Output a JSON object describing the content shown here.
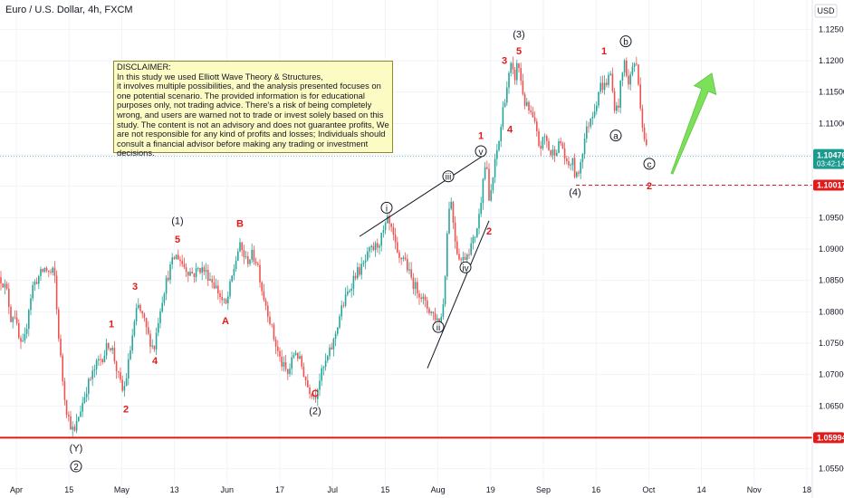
{
  "header": {
    "title": "Euro / U.S. Dollar, 4h, FXCM",
    "currency": "USD"
  },
  "disclaimer": {
    "heading": "DISCLAIMER:",
    "line1": "In this study we used Elliott Wave Theory & Structures,",
    "body": "it involves multiple possibilities, and the analysis presented focuses on one potential scenario. The provided information is for educational purposes only, not trading advice. There's a risk of being completely wrong, and users are warned not to trade or invest solely based on this study. The content is not an advisory and does not guarantee profits, We are not responsible for any kind of profits and losses; Individuals should consult a financial advisor before making any trading or investment decisions."
  },
  "chart_data": {
    "type": "candlestick",
    "symbol": "Euro / U.S. Dollar, 4h, FXCM",
    "ylim": [
      1.0525,
      1.1275
    ],
    "y_ticks": [
      "1.05500",
      "1.06000",
      "1.06500",
      "1.07000",
      "1.07500",
      "1.08000",
      "1.08500",
      "1.09000",
      "1.09500",
      "1.10000",
      "1.10500",
      "1.11000",
      "1.11500",
      "1.12000",
      "1.12500"
    ],
    "x_ticks": [
      "Apr",
      "15",
      "May",
      "13",
      "Jun",
      "17",
      "Jul",
      "15",
      "Aug",
      "19",
      "Sep",
      "16",
      "Oct",
      "14",
      "Nov",
      "18"
    ],
    "current_price": {
      "value": 1.10476,
      "label": "1.10476",
      "countdown": "03:42:14"
    },
    "levels": [
      {
        "value": 1.10017,
        "label": "1.10017",
        "style": "dashed",
        "color": "#e01b1b"
      },
      {
        "value": 1.05994,
        "label": "1.05994",
        "style": "solid",
        "color": "#e01b1b"
      }
    ],
    "close_path": [
      [
        0,
        1.0855
      ],
      [
        4,
        1.0845
      ],
      [
        8,
        1.083
      ],
      [
        12,
        1.079
      ],
      [
        16,
        1.08
      ],
      [
        20,
        1.076
      ],
      [
        24,
        1.074
      ],
      [
        28,
        1.076
      ],
      [
        32,
        1.081
      ],
      [
        36,
        1.084
      ],
      [
        40,
        1.085
      ],
      [
        45,
        1.086
      ],
      [
        50,
        1.087
      ],
      [
        55,
        1.086
      ],
      [
        60,
        1.0865
      ],
      [
        62,
        1.0815
      ],
      [
        66,
        1.074
      ],
      [
        70,
        1.068
      ],
      [
        74,
        1.064
      ],
      [
        78,
        1.062
      ],
      [
        82,
        1.0605
      ],
      [
        86,
        1.063
      ],
      [
        90,
        1.065
      ],
      [
        96,
        1.068
      ],
      [
        102,
        1.07
      ],
      [
        108,
        1.072
      ],
      [
        114,
        1.073
      ],
      [
        120,
        1.075
      ],
      [
        124,
        1.074
      ],
      [
        130,
        1.07
      ],
      [
        136,
        1.067
      ],
      [
        140,
        1.07
      ],
      [
        146,
        1.076
      ],
      [
        152,
        1.081
      ],
      [
        158,
        1.079
      ],
      [
        164,
        1.076
      ],
      [
        170,
        1.074
      ],
      [
        176,
        1.08
      ],
      [
        182,
        1.084
      ],
      [
        188,
        1.087
      ],
      [
        192,
        1.0885
      ],
      [
        196,
        1.089
      ],
      [
        202,
        1.0875
      ],
      [
        208,
        1.0865
      ],
      [
        214,
        1.086
      ],
      [
        220,
        1.087
      ],
      [
        226,
        1.0865
      ],
      [
        234,
        1.085
      ],
      [
        240,
        1.0835
      ],
      [
        246,
        1.0815
      ],
      [
        250,
        1.081
      ],
      [
        254,
        1.084
      ],
      [
        260,
        1.088
      ],
      [
        264,
        1.0905
      ],
      [
        268,
        1.0895
      ],
      [
        272,
        1.088
      ],
      [
        278,
        1.089
      ],
      [
        284,
        1.088
      ],
      [
        290,
        1.083
      ],
      [
        296,
        1.08
      ],
      [
        302,
        1.076
      ],
      [
        310,
        1.072
      ],
      [
        318,
        1.07
      ],
      [
        326,
        1.074
      ],
      [
        334,
        1.071
      ],
      [
        340,
        1.068
      ],
      [
        348,
        1.0665
      ],
      [
        352,
        1.069
      ],
      [
        360,
        1.072
      ],
      [
        368,
        1.075
      ],
      [
        376,
        1.08
      ],
      [
        384,
        1.083
      ],
      [
        392,
        1.086
      ],
      [
        400,
        1.087
      ],
      [
        408,
        1.0895
      ],
      [
        416,
        1.0905
      ],
      [
        422,
        1.092
      ],
      [
        428,
        1.0945
      ],
      [
        434,
        1.092
      ],
      [
        440,
        1.088
      ],
      [
        446,
        1.089
      ],
      [
        452,
        1.086
      ],
      [
        458,
        1.084
      ],
      [
        464,
        1.083
      ],
      [
        470,
        1.081
      ],
      [
        476,
        1.08
      ],
      [
        482,
        1.079
      ],
      [
        486,
        1.078
      ],
      [
        490,
        1.082
      ],
      [
        494,
        1.093
      ],
      [
        497,
        1.099
      ],
      [
        500,
        1.095
      ],
      [
        504,
        1.09
      ],
      [
        510,
        1.088
      ],
      [
        516,
        1.0895
      ],
      [
        522,
        1.091
      ],
      [
        526,
        1.093
      ],
      [
        530,
        1.096
      ],
      [
        534,
        1.103
      ],
      [
        538,
        1.103
      ],
      [
        540,
        1.097
      ],
      [
        544,
        1.101
      ],
      [
        548,
        1.105
      ],
      [
        552,
        1.108
      ],
      [
        556,
        1.113
      ],
      [
        560,
        1.116
      ],
      [
        564,
        1.119
      ],
      [
        568,
        1.117
      ],
      [
        572,
        1.12
      ],
      [
        576,
        1.116
      ],
      [
        580,
        1.113
      ],
      [
        584,
        1.112
      ],
      [
        590,
        1.11
      ],
      [
        596,
        1.106
      ],
      [
        602,
        1.108
      ],
      [
        608,
        1.105
      ],
      [
        614,
        1.106
      ],
      [
        620,
        1.107
      ],
      [
        626,
        1.103
      ],
      [
        632,
        1.104
      ],
      [
        636,
        1.101
      ],
      [
        640,
        1.103
      ],
      [
        646,
        1.108
      ],
      [
        652,
        1.111
      ],
      [
        658,
        1.113
      ],
      [
        662,
        1.116
      ],
      [
        668,
        1.116
      ],
      [
        674,
        1.118
      ],
      [
        678,
        1.113
      ],
      [
        682,
        1.112
      ],
      [
        686,
        1.117
      ],
      [
        690,
        1.12
      ],
      [
        694,
        1.116
      ],
      [
        698,
        1.119
      ],
      [
        702,
        1.12
      ],
      [
        706,
        1.115
      ],
      [
        710,
        1.109
      ],
      [
        714,
        1.106
      ],
      [
        716,
        1.105
      ]
    ],
    "wave_labels": [
      {
        "text": "(Y)",
        "x": 84,
        "y": 1.0578,
        "color": "black",
        "circled": false
      },
      {
        "text": "2",
        "x": 84,
        "y": 1.0548,
        "color": "black",
        "circled": true
      },
      {
        "text": "1",
        "x": 123,
        "y": 1.0775,
        "color": "red",
        "circled": false
      },
      {
        "text": "2",
        "x": 139,
        "y": 1.064,
        "color": "red",
        "circled": false
      },
      {
        "text": "3",
        "x": 149,
        "y": 1.0835,
        "color": "red",
        "circled": false
      },
      {
        "text": "4",
        "x": 171,
        "y": 1.0717,
        "color": "red",
        "circled": false
      },
      {
        "text": "5",
        "x": 196,
        "y": 1.091,
        "color": "red",
        "circled": false
      },
      {
        "text": "(1)",
        "x": 196,
        "y": 1.094,
        "color": "black",
        "circled": false
      },
      {
        "text": "A",
        "x": 249,
        "y": 1.078,
        "color": "red",
        "circled": false
      },
      {
        "text": "B",
        "x": 265,
        "y": 1.0935,
        "color": "red",
        "circled": false
      },
      {
        "text": "C",
        "x": 348,
        "y": 1.0665,
        "color": "red",
        "circled": false
      },
      {
        "text": "(2)",
        "x": 348,
        "y": 1.0637,
        "color": "black",
        "circled": false
      },
      {
        "text": "i",
        "x": 427,
        "y": 1.096,
        "color": "black",
        "circled": true
      },
      {
        "text": "ii",
        "x": 484,
        "y": 1.077,
        "color": "black",
        "circled": true
      },
      {
        "text": "iii",
        "x": 495,
        "y": 1.101,
        "color": "black",
        "circled": true
      },
      {
        "text": "iv",
        "x": 514,
        "y": 1.0865,
        "color": "black",
        "circled": true
      },
      {
        "text": "v",
        "x": 531,
        "y": 1.105,
        "color": "black",
        "circled": true
      },
      {
        "text": "1",
        "x": 531,
        "y": 1.1075,
        "color": "red",
        "circled": false
      },
      {
        "text": "2",
        "x": 540,
        "y": 1.0923,
        "color": "red",
        "circled": false
      },
      {
        "text": "3",
        "x": 557,
        "y": 1.1195,
        "color": "red",
        "circled": false
      },
      {
        "text": "4",
        "x": 563,
        "y": 1.1085,
        "color": "red",
        "circled": false
      },
      {
        "text": "5",
        "x": 573,
        "y": 1.121,
        "color": "red",
        "circled": false
      },
      {
        "text": "(3)",
        "x": 573,
        "y": 1.1237,
        "color": "black",
        "circled": false
      },
      {
        "text": "(4)",
        "x": 635,
        "y": 1.0985,
        "color": "black",
        "circled": false
      },
      {
        "text": "1",
        "x": 667,
        "y": 1.121,
        "color": "red",
        "circled": false
      },
      {
        "text": "a",
        "x": 680,
        "y": 1.1075,
        "color": "black",
        "circled": true
      },
      {
        "text": "b",
        "x": 691,
        "y": 1.1225,
        "color": "black",
        "circled": true
      },
      {
        "text": "c",
        "x": 717,
        "y": 1.103,
        "color": "black",
        "circled": true
      },
      {
        "text": "2",
        "x": 717,
        "y": 1.0995,
        "color": "red",
        "circled": false
      }
    ],
    "trendlines": [
      {
        "from": [
          397,
          1.092
        ],
        "to": [
          535,
          1.105
        ]
      },
      {
        "from": [
          472,
          1.071
        ],
        "to": [
          540,
          1.0945
        ]
      }
    ],
    "projection_arrow": {
      "from": [
        742,
        1.102
      ],
      "to": [
        786,
        1.118
      ],
      "color": "#7ce05a"
    }
  }
}
